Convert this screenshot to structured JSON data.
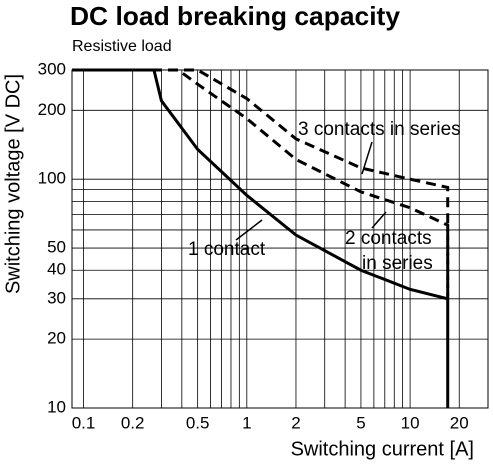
{
  "chart_data": {
    "type": "line",
    "title": "DC load breaking capacity",
    "subtitle": "Resistive load",
    "x_label": "Switching current [A]",
    "y_label": "Switching voltage [V DC]",
    "log_x": true,
    "log_y": true,
    "grid": true,
    "xlim": [
      0.085,
      30
    ],
    "ylim": [
      10,
      300
    ],
    "xticks": [
      0.1,
      0.2,
      0.5,
      1,
      2,
      5,
      10,
      20
    ],
    "yticks": [
      10,
      20,
      30,
      40,
      50,
      100,
      200,
      300
    ],
    "xgrid": [
      0.1,
      0.2,
      0.3,
      0.4,
      0.5,
      0.6,
      0.7,
      0.8,
      0.9,
      1,
      2,
      3,
      4,
      5,
      6,
      7,
      8,
      9,
      10,
      20
    ],
    "ygrid": [
      10,
      20,
      30,
      40,
      50,
      60,
      70,
      80,
      90,
      100,
      200,
      300
    ],
    "series": [
      {
        "color": "#000000",
        "dash": false,
        "x": [
          0.085,
          0.27,
          0.3,
          0.5,
          1,
          2,
          5,
          10,
          17,
          17
        ],
        "values": [
          300,
          300,
          220,
          135,
          85,
          57,
          40,
          33,
          30,
          10
        ]
      },
      {
        "color": "#000000",
        "dash": true,
        "x": [
          0.085,
          0.38,
          0.5,
          1,
          2,
          5,
          10,
          17,
          17
        ],
        "values": [
          300,
          300,
          260,
          184,
          122,
          88,
          75,
          63,
          30
        ]
      },
      {
        "color": "#000000",
        "dash": true,
        "x": [
          0.085,
          0.5,
          1,
          2,
          5,
          10,
          17,
          17
        ],
        "values": [
          300,
          300,
          225,
          150,
          112,
          100,
          92,
          30
        ]
      }
    ],
    "annotations": [
      "3 contacts in series",
      "2 contacts",
      "in series",
      "1 contact"
    ]
  }
}
